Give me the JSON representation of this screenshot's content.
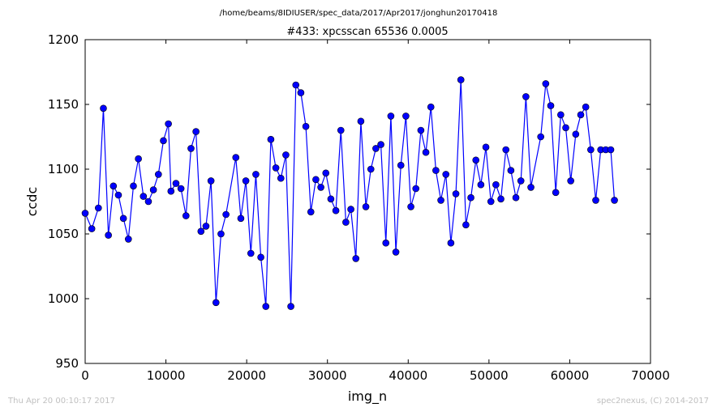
{
  "figure": {
    "supertitle": "/home/beams/8IDIUSER/spec_data/2017/Apr2017/jonghun20170418",
    "footer_left": "Thu Apr 20 00:10:17 2017",
    "footer_right": "spec2nexus, (C) 2014-2017"
  },
  "chart_data": {
    "type": "line",
    "title": "#433: xpcsscan 65536 0.0005",
    "xlabel": "img_n",
    "ylabel": "ccdc",
    "xlim": [
      0,
      70000
    ],
    "ylim": [
      950,
      1200
    ],
    "xticks": [
      0,
      10000,
      20000,
      30000,
      40000,
      50000,
      60000,
      70000
    ],
    "yticks": [
      950,
      1000,
      1050,
      1100,
      1150,
      1200
    ],
    "grid": false,
    "line_color": "#0000ff",
    "marker_color": "#0000ff",
    "marker": "circle",
    "series": [
      {
        "x": [
          0,
          819,
          1638,
          2257,
          2876,
          3496,
          4115,
          4734,
          5353,
          5973,
          6592,
          7211,
          7830,
          8449,
          9069,
          9688,
          10307,
          10626,
          11245,
          11864,
          12484,
          13103,
          13722,
          14341,
          14961,
          15580,
          16199,
          16818,
          17437,
          18657,
          19276,
          19895,
          20514,
          21134,
          21753,
          22372,
          22991,
          23611,
          24230,
          24849,
          25468,
          26088,
          26707,
          27326,
          27945,
          28564,
          29184,
          29803,
          30422,
          31041,
          31661,
          32280,
          32899,
          33518,
          34138,
          34757,
          35376,
          35995,
          36614,
          37234,
          37853,
          38472,
          39091,
          39711,
          40330,
          40949,
          41568,
          42188,
          42807,
          43426,
          44045,
          44665,
          45284,
          45903,
          46522,
          47142,
          47761,
          48380,
          48999,
          49619,
          50238,
          50857,
          51476,
          52096,
          52715,
          53334,
          53953,
          54573,
          55192,
          56411,
          57030,
          57649,
          58268,
          58888,
          59507,
          60126,
          60745,
          61365,
          61984,
          62603,
          63222,
          63842,
          64461,
          65080,
          65536
        ],
        "y": [
          1066,
          1054,
          1070,
          1147,
          1049,
          1087,
          1080,
          1062,
          1046,
          1087,
          1108,
          1079,
          1075,
          1084,
          1096,
          1122,
          1135,
          1083,
          1089,
          1085,
          1064,
          1116,
          1129,
          1052,
          1056,
          1091,
          997,
          1050,
          1065,
          1109,
          1062,
          1091,
          1035,
          1096,
          1032,
          994,
          1123,
          1101,
          1093,
          1111,
          994,
          1165,
          1159,
          1133,
          1067,
          1092,
          1086,
          1097,
          1077,
          1068,
          1130,
          1059,
          1069,
          1031,
          1137,
          1071,
          1100,
          1116,
          1119,
          1043,
          1141,
          1036,
          1103,
          1141,
          1071,
          1085,
          1130,
          1113,
          1148,
          1099,
          1076,
          1096,
          1043,
          1081,
          1169,
          1057,
          1078,
          1107,
          1088,
          1117,
          1075,
          1088,
          1077,
          1115,
          1099,
          1078,
          1091,
          1156,
          1086,
          1125,
          1166,
          1149,
          1082,
          1142,
          1132,
          1091,
          1127,
          1142,
          1148,
          1115,
          1076,
          1115,
          1115,
          1115,
          1076
        ]
      }
    ]
  }
}
